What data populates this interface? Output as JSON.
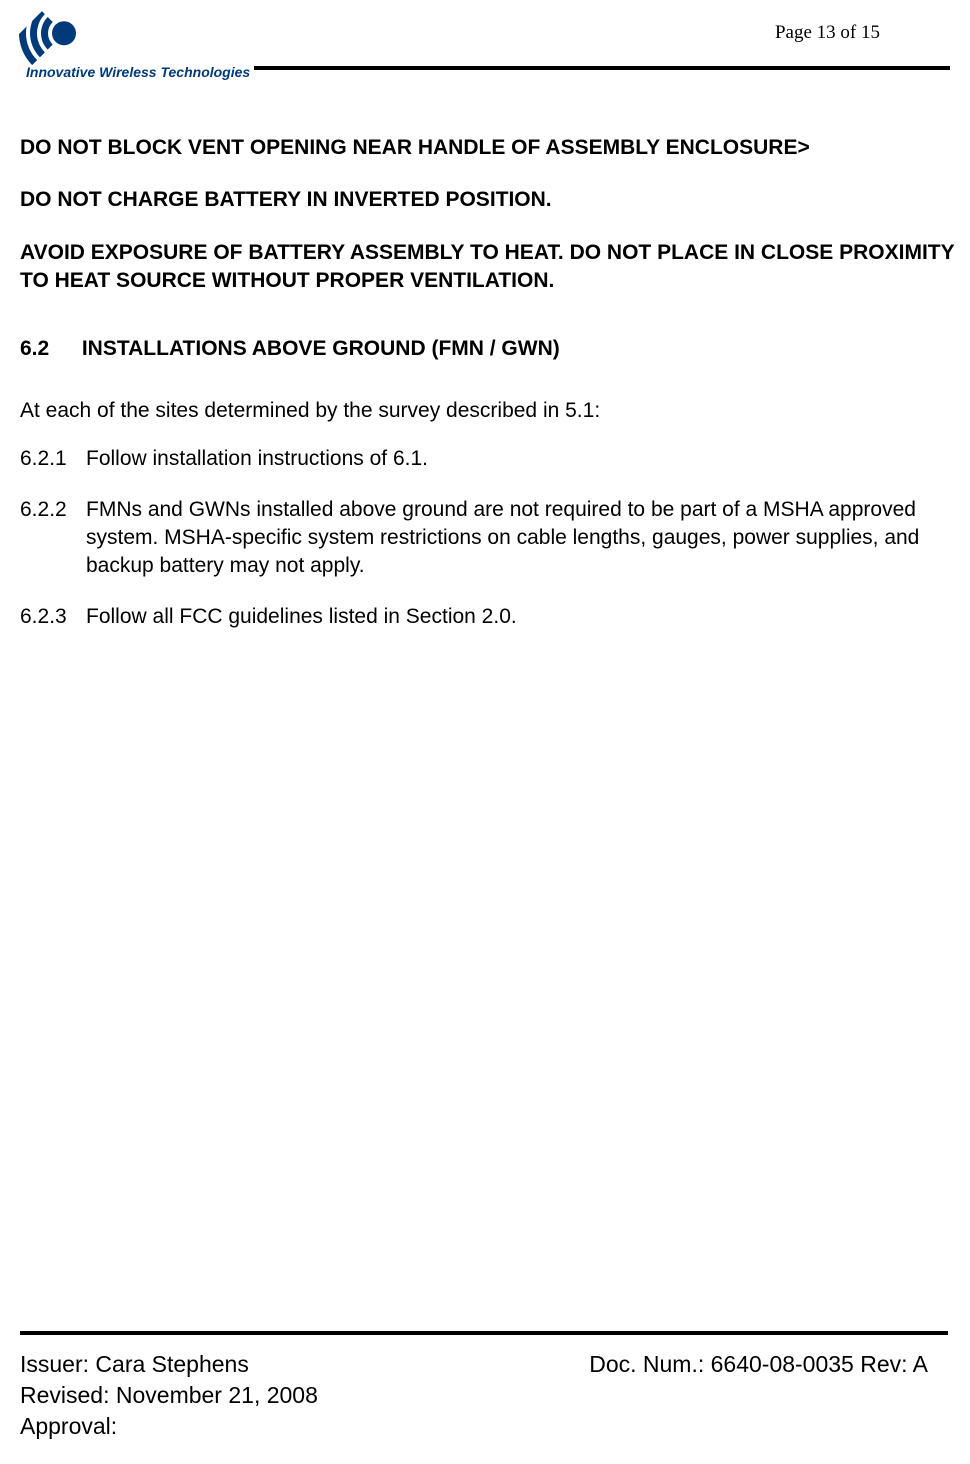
{
  "header": {
    "logo_text": "Innovative Wireless Technologies",
    "page_indicator": "Page 13 of 15",
    "logo_color": "#003a7a"
  },
  "warnings": {
    "w1": "DO NOT BLOCK VENT OPENING NEAR HANDLE OF ASSEMBLY ENCLOSURE>",
    "w2": "DO NOT CHARGE BATTERY IN INVERTED POSITION.",
    "w3": "AVOID EXPOSURE OF BATTERY ASSEMBLY TO HEAT.  DO NOT PLACE IN CLOSE PROXIMITY TO HEAT SOURCE WITHOUT PROPER VENTILATION."
  },
  "section": {
    "number": "6.2",
    "title": "INSTALLATIONS ABOVE GROUND (FMN / GWN)",
    "intro": "At each of the sites determined by the survey described in 5.1:",
    "items": [
      {
        "num": "6.2.1",
        "text": "Follow installation instructions of 6.1."
      },
      {
        "num": "6.2.2",
        "text": "FMNs and GWNs installed above ground are not required to be part of a MSHA approved system.  MSHA-specific system restrictions on cable lengths, gauges, power supplies, and backup battery may not apply."
      },
      {
        "num": "6.2.3",
        "text": "Follow all FCC guidelines listed in Section 2.0."
      }
    ]
  },
  "footer": {
    "issuer": "Issuer: Cara Stephens",
    "revised": "Revised: November 21, 2008",
    "approval": "Approval:",
    "docnum": "Doc. Num.: 6640-08-0035 Rev: A"
  },
  "style": {
    "background_color": "#ffffff",
    "text_color": "#000000",
    "rule_color": "#000000",
    "body_font": "Arial",
    "page_num_font": "Times New Roman",
    "warning_fontsize": 21,
    "body_fontsize": 21,
    "footer_fontsize": 23,
    "page_num_fontsize": 19
  }
}
